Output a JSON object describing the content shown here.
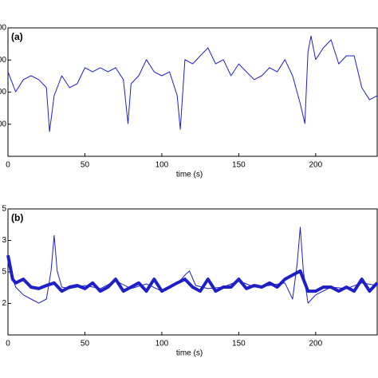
{
  "chart_data": [
    {
      "type": "line",
      "panel_label": "(a)",
      "x_label": "time (s)",
      "xlim": [
        0,
        240
      ],
      "xticks": [
        0,
        50,
        100,
        150,
        200
      ],
      "ylim": [
        0,
        4
      ],
      "yticks": [
        {
          "value": 1,
          "label": "00"
        },
        {
          "value": 2,
          "label": "00"
        },
        {
          "value": 3,
          "label": "00"
        },
        {
          "value": 4,
          "label": "00"
        }
      ],
      "series": [
        {
          "color": "#1f1fc8",
          "x": [
            0,
            5,
            10,
            15,
            20,
            25,
            27,
            30,
            35,
            40,
            45,
            50,
            55,
            60,
            65,
            70,
            75,
            78,
            80,
            85,
            90,
            95,
            100,
            105,
            110,
            112,
            115,
            120,
            125,
            130,
            135,
            140,
            145,
            150,
            155,
            160,
            165,
            170,
            175,
            180,
            185,
            190,
            193,
            195,
            197,
            200,
            205,
            210,
            215,
            220,
            225,
            230,
            235,
            240
          ],
          "values": [
            2.63,
            2.01,
            2.39,
            2.51,
            2.39,
            2.14,
            0.77,
            1.89,
            2.51,
            2.14,
            2.26,
            2.76,
            2.63,
            2.76,
            2.63,
            2.76,
            2.39,
            1.02,
            2.26,
            2.51,
            3.01,
            2.63,
            2.51,
            2.63,
            1.89,
            0.84,
            3.01,
            2.88,
            3.13,
            3.38,
            2.88,
            3.01,
            2.51,
            2.88,
            2.63,
            2.39,
            2.51,
            2.76,
            2.63,
            3.01,
            2.51,
            1.64,
            1.02,
            3.25,
            3.75,
            3.01,
            3.38,
            3.63,
            2.88,
            3.13,
            3.13,
            2.14,
            1.76,
            1.89
          ]
        }
      ]
    },
    {
      "type": "line",
      "panel_label": "(b)",
      "x_label": "time (s)",
      "xlim": [
        0,
        240
      ],
      "xticks": [
        0,
        50,
        100,
        150,
        200
      ],
      "ylim": [
        0,
        4
      ],
      "yticks": [
        {
          "value": 1,
          "label": "2"
        },
        {
          "value": 2,
          "label": "5"
        },
        {
          "value": 3,
          "label": "3"
        },
        {
          "value": 4,
          "label": "5"
        }
      ],
      "series": [
        {
          "color": "#1f1fc8",
          "width": 4,
          "x": [
            0,
            3,
            5,
            10,
            15,
            20,
            25,
            30,
            35,
            40,
            45,
            50,
            55,
            60,
            65,
            70,
            75,
            80,
            85,
            90,
            95,
            100,
            105,
            110,
            115,
            120,
            125,
            130,
            135,
            140,
            145,
            150,
            155,
            160,
            165,
            170,
            175,
            180,
            185,
            190,
            195,
            200,
            205,
            210,
            215,
            220,
            225,
            230,
            235,
            240
          ],
          "values": [
            2.53,
            1.77,
            1.65,
            1.77,
            1.52,
            1.47,
            1.57,
            1.65,
            1.39,
            1.52,
            1.57,
            1.47,
            1.65,
            1.39,
            1.52,
            1.77,
            1.39,
            1.52,
            1.65,
            1.39,
            1.77,
            1.39,
            1.52,
            1.65,
            1.77,
            1.52,
            1.39,
            1.77,
            1.39,
            1.52,
            1.52,
            1.77,
            1.47,
            1.57,
            1.52,
            1.65,
            1.52,
            1.77,
            1.9,
            2.03,
            1.39,
            1.39,
            1.52,
            1.52,
            1.39,
            1.52,
            1.39,
            1.77,
            1.39,
            1.65
          ]
        },
        {
          "color": "#1f1fc8",
          "width": 1,
          "x": [
            0,
            5,
            10,
            15,
            20,
            25,
            28,
            30,
            32,
            35,
            40,
            50,
            60,
            70,
            80,
            90,
            100,
            110,
            115,
            118,
            122,
            130,
            140,
            150,
            160,
            170,
            180,
            185,
            188,
            190,
            192,
            195,
            200,
            210,
            220,
            230,
            240
          ],
          "values": [
            2.28,
            1.52,
            1.27,
            1.14,
            1.01,
            1.14,
            2.03,
            3.16,
            2.03,
            1.52,
            1.47,
            1.57,
            1.47,
            1.72,
            1.47,
            1.62,
            1.39,
            1.62,
            1.9,
            2.03,
            1.57,
            1.47,
            1.52,
            1.72,
            1.52,
            1.57,
            1.65,
            1.14,
            2.28,
            3.42,
            2.03,
            1.01,
            1.27,
            1.52,
            1.47,
            1.65,
            1.57
          ]
        }
      ]
    }
  ]
}
